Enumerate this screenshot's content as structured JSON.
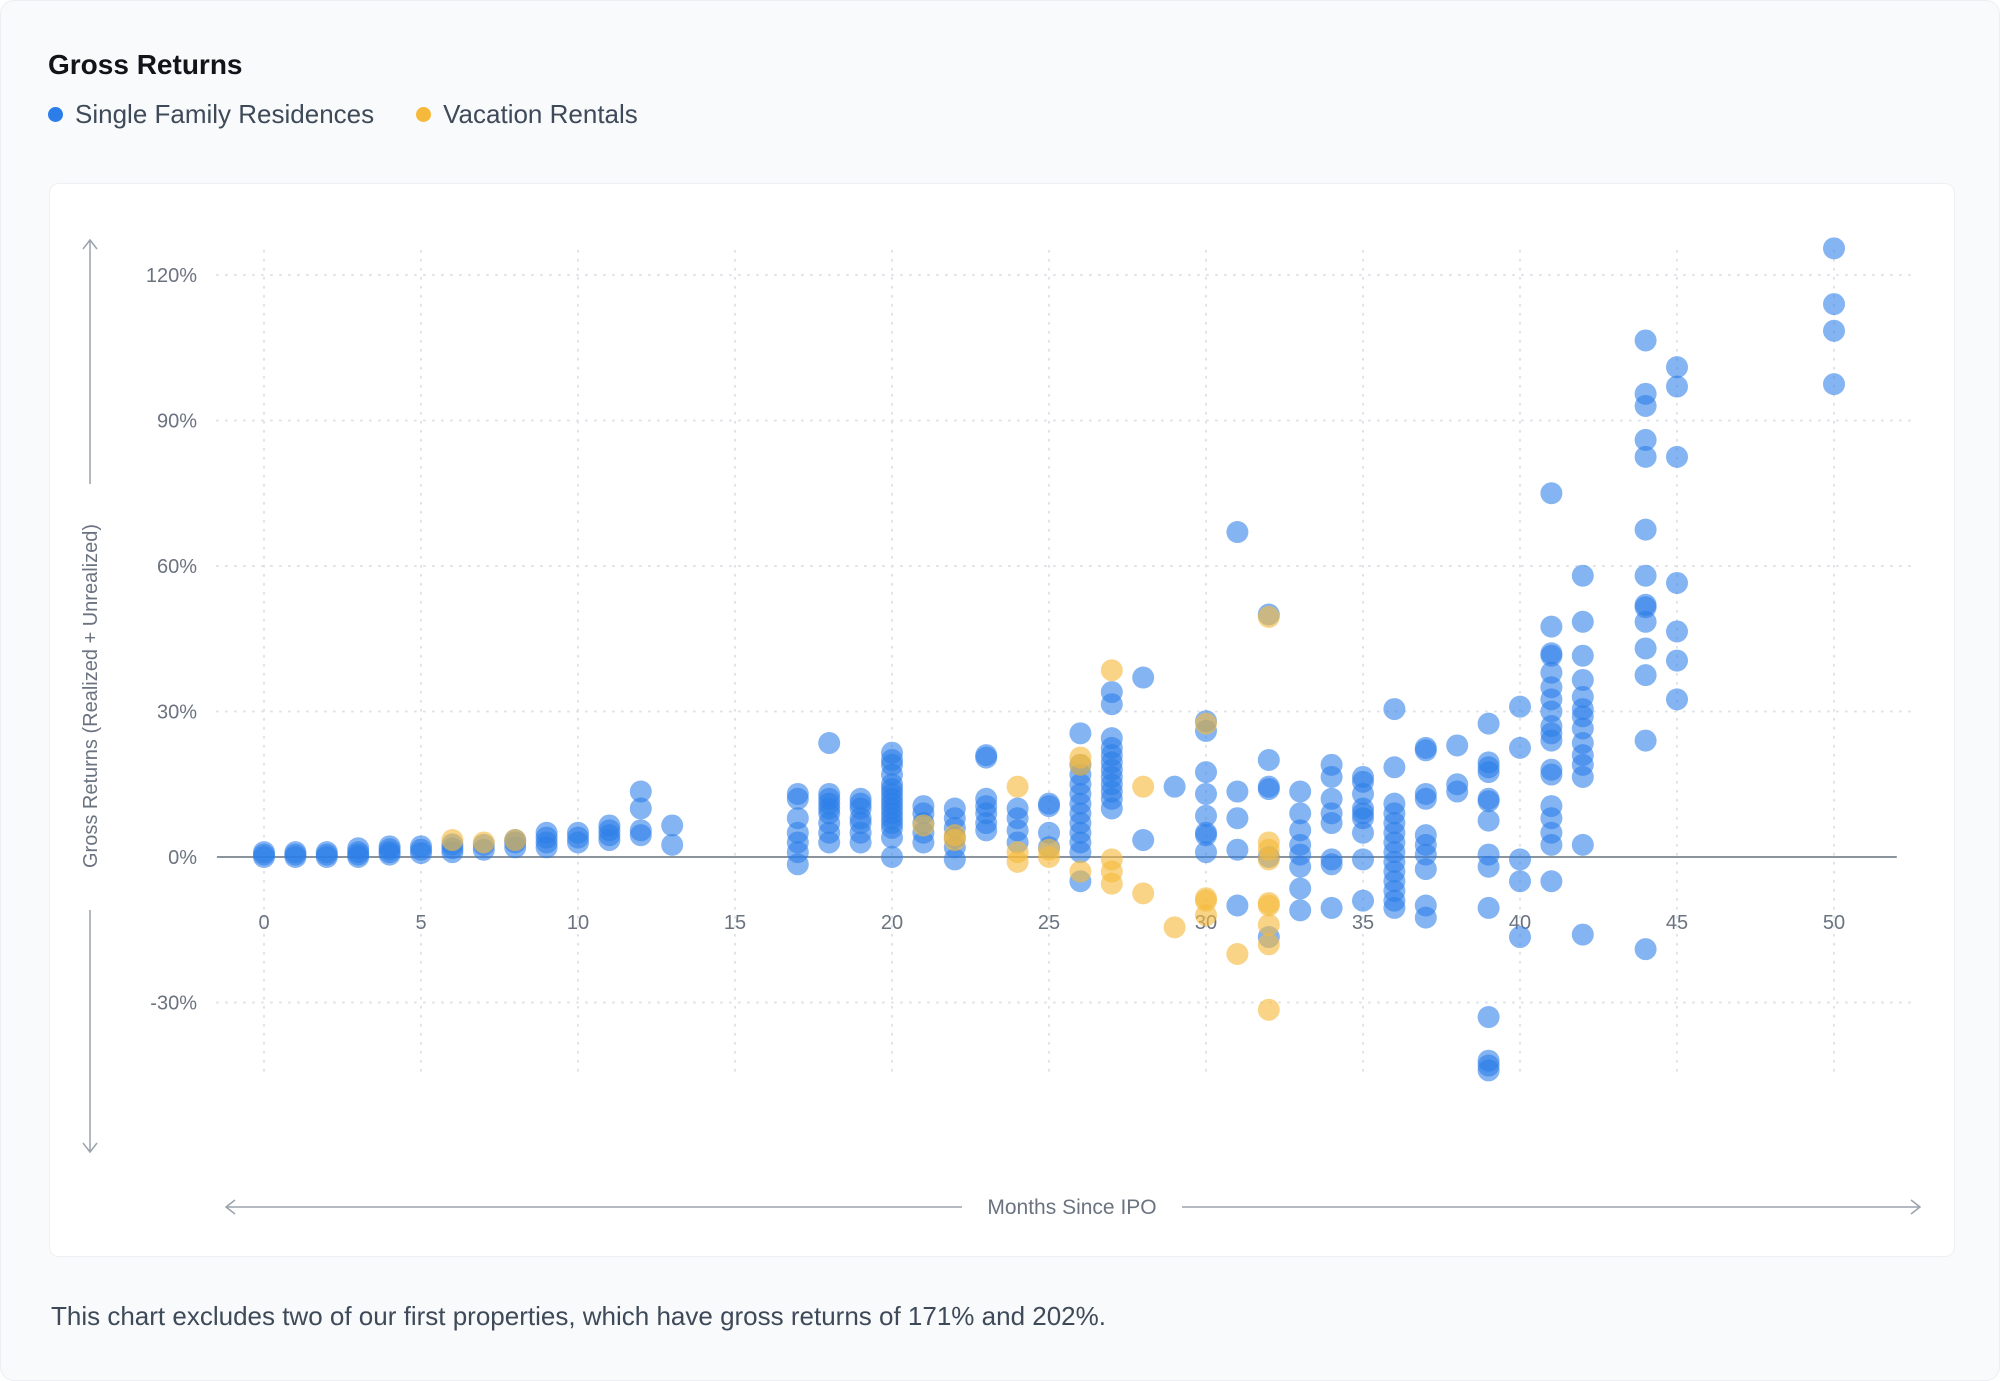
{
  "header": {
    "title": "Gross Returns"
  },
  "legend": [
    {
      "label": "Single Family Residences",
      "color": "#2b7de9"
    },
    {
      "label": "Vacation Rentals",
      "color": "#f6b93b"
    }
  ],
  "footnote": "This chart excludes two of our first properties, which have gross returns of 171% and 202%.",
  "chart_data": {
    "type": "scatter",
    "xlabel": "Months Since IPO",
    "ylabel": "Gross Returns (Realized + Unrealized)",
    "xlim": [
      -1.5,
      52.5
    ],
    "ylim": [
      -45,
      125
    ],
    "x_ticks": [
      0,
      5,
      10,
      15,
      20,
      25,
      30,
      35,
      40,
      45,
      50
    ],
    "x_tick_labels": [
      "0",
      "5",
      "10",
      "15",
      "20",
      "25",
      "30",
      "35",
      "40",
      "45",
      "50"
    ],
    "y_ticks": [
      -30,
      0,
      30,
      60,
      90,
      120
    ],
    "y_tick_labels": [
      "-30%",
      "0%",
      "30%",
      "60%",
      "90%",
      "120%"
    ],
    "grid": "dotted",
    "zero_line": true,
    "legend_position": "top-left",
    "series": [
      {
        "name": "Single Family Residences",
        "color": "#2b7de9",
        "points": [
          [
            0,
            0
          ],
          [
            0,
            0.5
          ],
          [
            0,
            1
          ],
          [
            1,
            0
          ],
          [
            1,
            0.5
          ],
          [
            1,
            1
          ],
          [
            2,
            0
          ],
          [
            2,
            0.5
          ],
          [
            2,
            1
          ],
          [
            3,
            0
          ],
          [
            3,
            0.5
          ],
          [
            3,
            1
          ],
          [
            3,
            1.8
          ],
          [
            4,
            0.5
          ],
          [
            4,
            1
          ],
          [
            4,
            1.6
          ],
          [
            4,
            2.2
          ],
          [
            5,
            0.8
          ],
          [
            5,
            1.5
          ],
          [
            5,
            2.2
          ],
          [
            6,
            1
          ],
          [
            6,
            1.8
          ],
          [
            6,
            2.6
          ],
          [
            7,
            1.5
          ],
          [
            7,
            2.5
          ],
          [
            8,
            2
          ],
          [
            8,
            3
          ],
          [
            8,
            3.5
          ],
          [
            9,
            2
          ],
          [
            9,
            3
          ],
          [
            9,
            4
          ],
          [
            9,
            5
          ],
          [
            10,
            3
          ],
          [
            10,
            4
          ],
          [
            10,
            5
          ],
          [
            11,
            3.5
          ],
          [
            11,
            4.5
          ],
          [
            11,
            5.5
          ],
          [
            11,
            6.5
          ],
          [
            12,
            4.5
          ],
          [
            12,
            5.5
          ],
          [
            12,
            10
          ],
          [
            12,
            13.5
          ],
          [
            13,
            2.5
          ],
          [
            13,
            6.5
          ],
          [
            17,
            -1.5
          ],
          [
            17,
            1
          ],
          [
            17,
            3
          ],
          [
            17,
            5
          ],
          [
            17,
            8
          ],
          [
            17,
            12
          ],
          [
            17,
            13
          ],
          [
            18,
            3
          ],
          [
            18,
            5
          ],
          [
            18,
            7
          ],
          [
            18,
            9
          ],
          [
            18,
            10
          ],
          [
            18,
            11
          ],
          [
            18,
            12
          ],
          [
            18,
            13
          ],
          [
            18,
            23.5
          ],
          [
            19,
            3
          ],
          [
            19,
            5
          ],
          [
            19,
            7
          ],
          [
            19,
            8
          ],
          [
            19,
            10
          ],
          [
            19,
            11
          ],
          [
            19,
            12
          ],
          [
            20,
            0
          ],
          [
            20,
            4
          ],
          [
            20,
            6
          ],
          [
            20,
            7
          ],
          [
            20,
            8
          ],
          [
            20,
            9
          ],
          [
            20,
            10
          ],
          [
            20,
            11
          ],
          [
            20,
            12
          ],
          [
            20,
            13
          ],
          [
            20,
            14
          ],
          [
            20,
            15
          ],
          [
            20,
            17
          ],
          [
            20,
            19
          ],
          [
            20,
            20
          ],
          [
            20,
            21.5
          ],
          [
            21,
            3
          ],
          [
            21,
            5
          ],
          [
            21,
            7
          ],
          [
            21,
            9
          ],
          [
            21,
            10.5
          ],
          [
            22,
            -0.5
          ],
          [
            22,
            2
          ],
          [
            22,
            4
          ],
          [
            22,
            6
          ],
          [
            22,
            8
          ],
          [
            22,
            10
          ],
          [
            23,
            5.5
          ],
          [
            23,
            7
          ],
          [
            23,
            9
          ],
          [
            23,
            10.5
          ],
          [
            23,
            12
          ],
          [
            23,
            20.5
          ],
          [
            23,
            21
          ],
          [
            24,
            3
          ],
          [
            24,
            5.5
          ],
          [
            24,
            8
          ],
          [
            24,
            10
          ],
          [
            25,
            2
          ],
          [
            25,
            5
          ],
          [
            25,
            10.5
          ],
          [
            25,
            11
          ],
          [
            26,
            -5
          ],
          [
            26,
            1
          ],
          [
            26,
            3
          ],
          [
            26,
            5
          ],
          [
            26,
            7
          ],
          [
            26,
            9
          ],
          [
            26,
            11
          ],
          [
            26,
            13
          ],
          [
            26,
            15
          ],
          [
            26,
            17
          ],
          [
            26,
            19
          ],
          [
            26,
            25.5
          ],
          [
            27,
            10
          ],
          [
            27,
            12
          ],
          [
            27,
            13.5
          ],
          [
            27,
            15
          ],
          [
            27,
            16.5
          ],
          [
            27,
            18
          ],
          [
            27,
            19.5
          ],
          [
            27,
            21
          ],
          [
            27,
            22.5
          ],
          [
            27,
            24.5
          ],
          [
            27,
            31.5
          ],
          [
            27,
            34
          ],
          [
            28,
            3.5
          ],
          [
            28,
            37
          ],
          [
            29,
            14.5
          ],
          [
            30,
            1
          ],
          [
            30,
            4.5
          ],
          [
            30,
            5
          ],
          [
            30,
            8.5
          ],
          [
            30,
            13
          ],
          [
            30,
            17.5
          ],
          [
            30,
            26
          ],
          [
            30,
            28
          ],
          [
            31,
            -10
          ],
          [
            31,
            1.5
          ],
          [
            31,
            8
          ],
          [
            31,
            13.5
          ],
          [
            31,
            67
          ],
          [
            32,
            -16.5
          ],
          [
            32,
            0
          ],
          [
            32,
            14
          ],
          [
            32,
            14.5
          ],
          [
            32,
            20
          ],
          [
            32,
            50
          ],
          [
            33,
            -11
          ],
          [
            33,
            -6.5
          ],
          [
            33,
            -2
          ],
          [
            33,
            0.5
          ],
          [
            33,
            2.5
          ],
          [
            33,
            5.5
          ],
          [
            33,
            9
          ],
          [
            33,
            13.5
          ],
          [
            34,
            -10.5
          ],
          [
            34,
            -1.5
          ],
          [
            34,
            -0.5
          ],
          [
            34,
            7
          ],
          [
            34,
            9
          ],
          [
            34,
            12
          ],
          [
            34,
            16.5
          ],
          [
            34,
            19
          ],
          [
            35,
            -9
          ],
          [
            35,
            -0.5
          ],
          [
            35,
            5
          ],
          [
            35,
            8
          ],
          [
            35,
            9
          ],
          [
            35,
            10
          ],
          [
            35,
            13
          ],
          [
            35,
            15.5
          ],
          [
            35,
            16.5
          ],
          [
            36,
            -10.5
          ],
          [
            36,
            -9
          ],
          [
            36,
            -7
          ],
          [
            36,
            -5
          ],
          [
            36,
            -3
          ],
          [
            36,
            -1
          ],
          [
            36,
            1
          ],
          [
            36,
            3
          ],
          [
            36,
            5
          ],
          [
            36,
            7
          ],
          [
            36,
            9
          ],
          [
            36,
            11
          ],
          [
            36,
            18.5
          ],
          [
            36,
            30.5
          ],
          [
            37,
            -12.5
          ],
          [
            37,
            -10
          ],
          [
            37,
            -2.5
          ],
          [
            37,
            0.5
          ],
          [
            37,
            2.5
          ],
          [
            37,
            4.5
          ],
          [
            37,
            12
          ],
          [
            37,
            13
          ],
          [
            37,
            22
          ],
          [
            37,
            22.5
          ],
          [
            38,
            13.5
          ],
          [
            38,
            15
          ],
          [
            38,
            23
          ],
          [
            39,
            -44
          ],
          [
            39,
            -43
          ],
          [
            39,
            -42
          ],
          [
            39,
            -33
          ],
          [
            39,
            -10.5
          ],
          [
            39,
            -2
          ],
          [
            39,
            0.5
          ],
          [
            39,
            7.5
          ],
          [
            39,
            11.5
          ],
          [
            39,
            12
          ],
          [
            39,
            17.5
          ],
          [
            39,
            18.5
          ],
          [
            39,
            19.5
          ],
          [
            39,
            27.5
          ],
          [
            40,
            -16.5
          ],
          [
            40,
            -5
          ],
          [
            40,
            -0.5
          ],
          [
            40,
            22.5
          ],
          [
            40,
            31
          ],
          [
            41,
            -5
          ],
          [
            41,
            2.5
          ],
          [
            41,
            5
          ],
          [
            41,
            8
          ],
          [
            41,
            10.5
          ],
          [
            41,
            17
          ],
          [
            41,
            18
          ],
          [
            41,
            24
          ],
          [
            41,
            25.5
          ],
          [
            41,
            27
          ],
          [
            41,
            30
          ],
          [
            41,
            32.5
          ],
          [
            41,
            35
          ],
          [
            41,
            38
          ],
          [
            41,
            41.5
          ],
          [
            41,
            42
          ],
          [
            41,
            47.5
          ],
          [
            41,
            75
          ],
          [
            42,
            -16
          ],
          [
            42,
            2.5
          ],
          [
            42,
            16.5
          ],
          [
            42,
            19
          ],
          [
            42,
            21
          ],
          [
            42,
            23.5
          ],
          [
            42,
            26.5
          ],
          [
            42,
            29
          ],
          [
            42,
            30.5
          ],
          [
            42,
            33
          ],
          [
            42,
            36.5
          ],
          [
            42,
            41.5
          ],
          [
            42,
            48.5
          ],
          [
            42,
            58
          ],
          [
            44,
            -19
          ],
          [
            44,
            24
          ],
          [
            44,
            37.5
          ],
          [
            44,
            43
          ],
          [
            44,
            48.5
          ],
          [
            44,
            51.5
          ],
          [
            44,
            52
          ],
          [
            44,
            58
          ],
          [
            44,
            67.5
          ],
          [
            44,
            82.5
          ],
          [
            44,
            86
          ],
          [
            44,
            93
          ],
          [
            44,
            95.5
          ],
          [
            44,
            106.5
          ],
          [
            45,
            32.5
          ],
          [
            45,
            40.5
          ],
          [
            45,
            46.5
          ],
          [
            45,
            56.5
          ],
          [
            45,
            82.5
          ],
          [
            45,
            97
          ],
          [
            45,
            101
          ],
          [
            50,
            97.5
          ],
          [
            50,
            108.5
          ],
          [
            50,
            114
          ],
          [
            50,
            125.5
          ]
        ]
      },
      {
        "name": "Vacation Rentals",
        "color": "#f6b93b",
        "points": [
          [
            6,
            3.5
          ],
          [
            7,
            3
          ],
          [
            8,
            3.5
          ],
          [
            21,
            6.5
          ],
          [
            22,
            3.5
          ],
          [
            22,
            4.5
          ],
          [
            24,
            -1
          ],
          [
            24,
            1
          ],
          [
            24,
            14.5
          ],
          [
            25,
            0
          ],
          [
            25,
            1.5
          ],
          [
            26,
            -3
          ],
          [
            26,
            19
          ],
          [
            26,
            20.5
          ],
          [
            27,
            -5.5
          ],
          [
            27,
            -3
          ],
          [
            27,
            -0.5
          ],
          [
            27,
            38.5
          ],
          [
            28,
            -7.5
          ],
          [
            28,
            14.5
          ],
          [
            29,
            -14.5
          ],
          [
            30,
            -12
          ],
          [
            30,
            -9
          ],
          [
            30,
            -8.5
          ],
          [
            30,
            27.5
          ],
          [
            31,
            -20
          ],
          [
            32,
            -31.5
          ],
          [
            32,
            -18
          ],
          [
            32,
            -14
          ],
          [
            32,
            -10
          ],
          [
            32,
            -9.5
          ],
          [
            32,
            -0.5
          ],
          [
            32,
            1.5
          ],
          [
            32,
            3
          ],
          [
            32,
            49.5
          ]
        ]
      }
    ]
  }
}
